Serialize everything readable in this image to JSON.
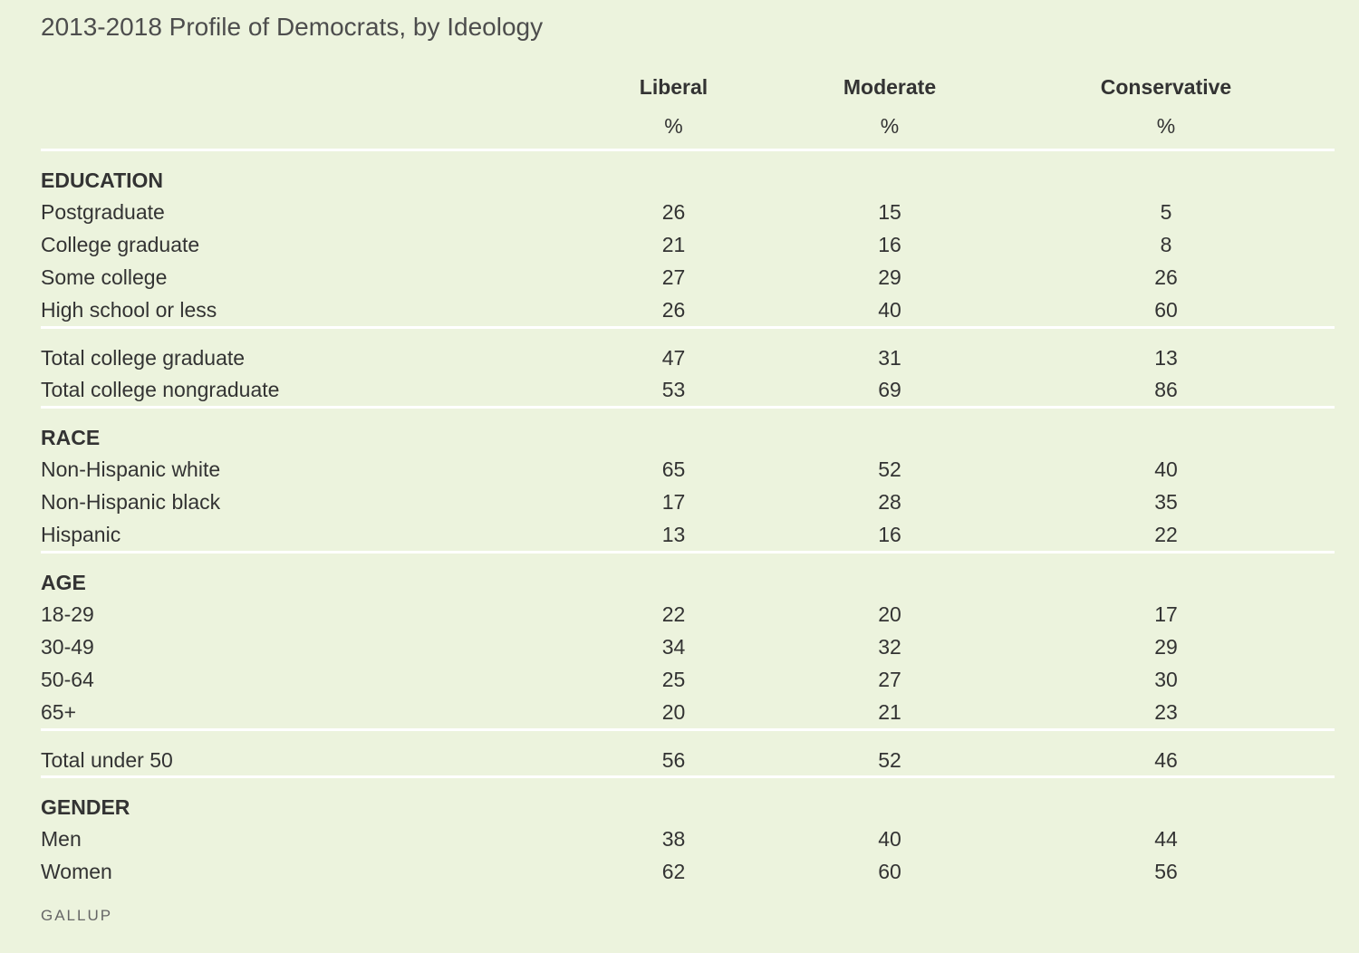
{
  "title": "2013-2018 Profile of Democrats, by Ideology",
  "source": "GALLUP",
  "chart_data": {
    "type": "table",
    "title": "2013-2018 Profile of Democrats, by Ideology",
    "columns": [
      "Liberal",
      "Moderate",
      "Conservative"
    ],
    "units": [
      "%",
      "%",
      "%"
    ],
    "sections": [
      {
        "name": "EDUCATION",
        "groups": [
          [
            {
              "label": "Postgraduate",
              "values": [
                "26",
                "15",
                "5"
              ]
            },
            {
              "label": "College graduate",
              "values": [
                "21",
                "16",
                "8"
              ]
            },
            {
              "label": "Some college",
              "values": [
                "27",
                "29",
                "26"
              ]
            },
            {
              "label": "High school or less",
              "values": [
                "26",
                "40",
                "60"
              ]
            }
          ],
          [
            {
              "label": "Total college graduate",
              "values": [
                "47",
                "31",
                "13"
              ]
            },
            {
              "label": "Total college nongraduate",
              "values": [
                "53",
                "69",
                "86"
              ]
            }
          ]
        ]
      },
      {
        "name": "RACE",
        "groups": [
          [
            {
              "label": "Non-Hispanic white",
              "values": [
                "65",
                "52",
                "40"
              ]
            },
            {
              "label": "Non-Hispanic black",
              "values": [
                "17",
                "28",
                "35"
              ]
            },
            {
              "label": "Hispanic",
              "values": [
                "13",
                "16",
                "22"
              ]
            }
          ]
        ]
      },
      {
        "name": "AGE",
        "groups": [
          [
            {
              "label": "18-29",
              "values": [
                "22",
                "20",
                "17"
              ]
            },
            {
              "label": "30-49",
              "values": [
                "34",
                "32",
                "29"
              ]
            },
            {
              "label": "50-64",
              "values": [
                "25",
                "27",
                "30"
              ]
            },
            {
              "label": "65+",
              "values": [
                "20",
                "21",
                "23"
              ]
            }
          ],
          [
            {
              "label": "Total under 50",
              "values": [
                "56",
                "52",
                "46"
              ]
            }
          ]
        ]
      },
      {
        "name": "GENDER",
        "groups": [
          [
            {
              "label": "Men",
              "values": [
                "38",
                "40",
                "44"
              ]
            },
            {
              "label": "Women",
              "values": [
                "62",
                "60",
                "56"
              ]
            }
          ]
        ]
      }
    ]
  },
  "colors": {
    "background": "#ecf3dd",
    "text": "#333333",
    "rule": "#ffffff",
    "source": "#666666"
  }
}
